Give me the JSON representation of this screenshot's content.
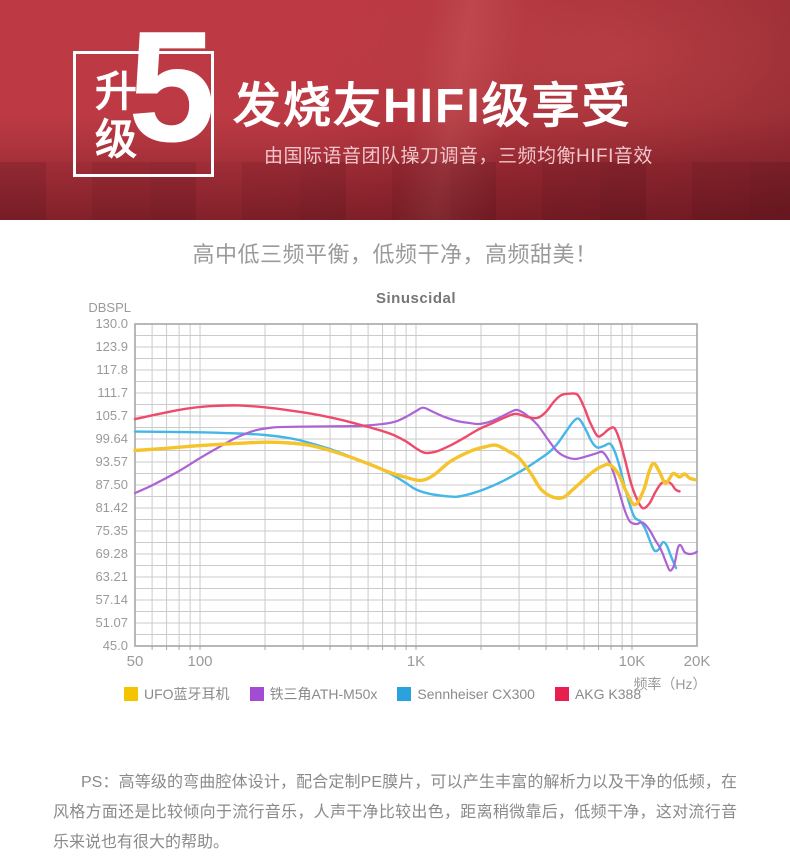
{
  "banner": {
    "badge_top": "升",
    "badge_bottom": "级",
    "badge_number": "5",
    "title": "发烧友HIFI级享受",
    "subtitle": "由国际语音团队操刀调音，三频均衡HIFI音效",
    "background_color": "#bd3a44"
  },
  "heading": "高中低三频平衡，低频干净，高频甜美！",
  "chart_data": {
    "type": "line",
    "title": "Sinuscidal",
    "ylabel": "DBSPL",
    "xlabel": "频率（Hz）",
    "x_scale": "log",
    "x_range": [
      50,
      20000
    ],
    "y_range": [
      45,
      130
    ],
    "grid": true,
    "legend_position": "bottom",
    "y_ticks": [
      {
        "label": "130.0",
        "v": 130.0
      },
      {
        "label": "123.9",
        "v": 123.93
      },
      {
        "label": "117.8",
        "v": 117.86
      },
      {
        "label": "111.7",
        "v": 111.79
      },
      {
        "label": "105.7",
        "v": 105.71
      },
      {
        "label": "99.64",
        "v": 99.64
      },
      {
        "label": "93.57",
        "v": 93.57
      },
      {
        "label": "87.50",
        "v": 87.5
      },
      {
        "label": "81.42",
        "v": 81.42
      },
      {
        "label": "75.35",
        "v": 75.35
      },
      {
        "label": "69.28",
        "v": 69.28
      },
      {
        "label": "63.21",
        "v": 63.21
      },
      {
        "label": "57.14",
        "v": 57.14
      },
      {
        "label": "51.07",
        "v": 51.07
      },
      {
        "label": "45.0",
        "v": 45.0
      }
    ],
    "x_ticks": [
      {
        "label": "50",
        "f": 50
      },
      {
        "label": "100",
        "f": 100
      },
      {
        "label": "1K",
        "f": 1000
      },
      {
        "label": "10K",
        "f": 10000
      },
      {
        "label": "20K",
        "f": 20000
      }
    ],
    "x_gridlines": [
      60,
      70,
      80,
      90,
      100,
      200,
      300,
      400,
      500,
      600,
      700,
      800,
      900,
      1000,
      2000,
      3000,
      4000,
      5000,
      6000,
      7000,
      8000,
      9000,
      10000
    ],
    "series": [
      {
        "name": "UFO蓝牙耳机",
        "color": "#f5c32c",
        "swatch": "#f5c400",
        "width": 3.4,
        "points": [
          [
            50,
            96.6
          ],
          [
            70,
            97.2
          ],
          [
            100,
            97.9
          ],
          [
            150,
            98.5
          ],
          [
            200,
            98.8
          ],
          [
            260,
            98.6
          ],
          [
            320,
            98.0
          ],
          [
            400,
            96.6
          ],
          [
            500,
            94.8
          ],
          [
            620,
            92.8
          ],
          [
            750,
            90.9
          ],
          [
            900,
            89.5
          ],
          [
            1050,
            88.7
          ],
          [
            1200,
            90.0
          ],
          [
            1450,
            93.8
          ],
          [
            1800,
            96.5
          ],
          [
            2100,
            97.6
          ],
          [
            2350,
            98.0
          ],
          [
            2700,
            96.3
          ],
          [
            3000,
            94.6
          ],
          [
            3400,
            90.6
          ],
          [
            3800,
            86.3
          ],
          [
            4300,
            84.3
          ],
          [
            4800,
            84.2
          ],
          [
            5300,
            86.2
          ],
          [
            5900,
            88.6
          ],
          [
            6600,
            91.0
          ],
          [
            7300,
            92.5
          ],
          [
            7900,
            92.8
          ],
          [
            8700,
            90.2
          ],
          [
            9400,
            85.8
          ],
          [
            10300,
            82.3
          ],
          [
            11300,
            86.0
          ],
          [
            12000,
            91.0
          ],
          [
            12600,
            93.2
          ],
          [
            13400,
            91.0
          ],
          [
            14300,
            88.0
          ],
          [
            15500,
            90.5
          ],
          [
            16600,
            89.6
          ],
          [
            17500,
            90.4
          ],
          [
            18500,
            89.3
          ],
          [
            19600,
            88.9
          ]
        ]
      },
      {
        "name": "铁三角ATH-M50x",
        "color": "#ab63d6",
        "swatch": "#a44bd3",
        "width": 2.2,
        "points": [
          [
            50,
            85.4
          ],
          [
            60,
            87.4
          ],
          [
            80,
            91.2
          ],
          [
            100,
            94.6
          ],
          [
            125,
            97.8
          ],
          [
            150,
            100.2
          ],
          [
            180,
            101.9
          ],
          [
            220,
            102.7
          ],
          [
            280,
            102.9
          ],
          [
            400,
            103.0
          ],
          [
            550,
            103.1
          ],
          [
            700,
            103.6
          ],
          [
            800,
            104.2
          ],
          [
            900,
            105.5
          ],
          [
            1000,
            107.0
          ],
          [
            1080,
            107.9
          ],
          [
            1200,
            106.8
          ],
          [
            1350,
            105.5
          ],
          [
            1550,
            104.4
          ],
          [
            1750,
            103.9
          ],
          [
            1950,
            103.6
          ],
          [
            2200,
            104.2
          ],
          [
            2500,
            105.6
          ],
          [
            2750,
            106.8
          ],
          [
            2950,
            107.3
          ],
          [
            3300,
            105.7
          ],
          [
            3650,
            103.4
          ],
          [
            4050,
            99.8
          ],
          [
            4500,
            96.4
          ],
          [
            5000,
            94.8
          ],
          [
            5500,
            94.4
          ],
          [
            6200,
            95.1
          ],
          [
            6800,
            95.8
          ],
          [
            7300,
            96.2
          ],
          [
            7800,
            94.0
          ],
          [
            8300,
            90.0
          ],
          [
            8800,
            85.0
          ],
          [
            9300,
            80.5
          ],
          [
            9800,
            77.8
          ],
          [
            10500,
            77.2
          ],
          [
            11200,
            77.6
          ],
          [
            12000,
            75.8
          ],
          [
            12800,
            73.0
          ],
          [
            13600,
            70.5
          ],
          [
            14400,
            67.0
          ],
          [
            15000,
            64.9
          ],
          [
            15700,
            66.5
          ],
          [
            16300,
            70.8
          ],
          [
            16800,
            71.6
          ],
          [
            17500,
            69.8
          ],
          [
            18300,
            69.3
          ],
          [
            19200,
            69.4
          ],
          [
            20000,
            69.9
          ]
        ]
      },
      {
        "name": "Sennheiser CX300",
        "color": "#45b6e8",
        "swatch": "#2aa2de",
        "width": 2.4,
        "points": [
          [
            50,
            101.6
          ],
          [
            100,
            101.4
          ],
          [
            150,
            101.1
          ],
          [
            200,
            100.7
          ],
          [
            250,
            100.0
          ],
          [
            300,
            99.1
          ],
          [
            400,
            97.0
          ],
          [
            500,
            94.9
          ],
          [
            600,
            93.2
          ],
          [
            700,
            91.5
          ],
          [
            800,
            89.8
          ],
          [
            900,
            88.0
          ],
          [
            1000,
            86.3
          ],
          [
            1150,
            85.2
          ],
          [
            1350,
            84.6
          ],
          [
            1550,
            84.4
          ],
          [
            1800,
            85.2
          ],
          [
            2100,
            86.5
          ],
          [
            2500,
            88.4
          ],
          [
            2900,
            90.4
          ],
          [
            3300,
            92.3
          ],
          [
            3700,
            94.2
          ],
          [
            4100,
            96.0
          ],
          [
            4500,
            98.3
          ],
          [
            5000,
            102.0
          ],
          [
            5400,
            104.5
          ],
          [
            5700,
            104.9
          ],
          [
            6100,
            102.2
          ],
          [
            6500,
            99.0
          ],
          [
            6900,
            97.4
          ],
          [
            7400,
            97.8
          ],
          [
            7900,
            98.4
          ],
          [
            8300,
            96.5
          ],
          [
            8800,
            92.0
          ],
          [
            9300,
            86.5
          ],
          [
            9800,
            82.0
          ],
          [
            10300,
            78.9
          ],
          [
            10900,
            78.0
          ],
          [
            11500,
            76.0
          ],
          [
            12100,
            72.8
          ],
          [
            12700,
            70.2
          ],
          [
            13300,
            70.5
          ],
          [
            13900,
            72.4
          ],
          [
            14500,
            71.5
          ],
          [
            15200,
            68.5
          ],
          [
            16000,
            65.6
          ]
        ]
      },
      {
        "name": "AKG K388",
        "color": "#ee4a6b",
        "swatch": "#e81e4e",
        "width": 2.4,
        "points": [
          [
            50,
            104.9
          ],
          [
            65,
            106.3
          ],
          [
            85,
            107.6
          ],
          [
            110,
            108.3
          ],
          [
            150,
            108.5
          ],
          [
            200,
            108.0
          ],
          [
            260,
            107.2
          ],
          [
            330,
            106.3
          ],
          [
            420,
            105.1
          ],
          [
            520,
            103.8
          ],
          [
            640,
            102.4
          ],
          [
            780,
            100.8
          ],
          [
            900,
            99.0
          ],
          [
            1000,
            97.2
          ],
          [
            1100,
            96.0
          ],
          [
            1250,
            96.4
          ],
          [
            1450,
            98.0
          ],
          [
            1700,
            100.2
          ],
          [
            1950,
            102.2
          ],
          [
            2250,
            103.8
          ],
          [
            2600,
            105.4
          ],
          [
            2900,
            106.3
          ],
          [
            3300,
            105.4
          ],
          [
            3650,
            105.2
          ],
          [
            4000,
            106.8
          ],
          [
            4350,
            109.5
          ],
          [
            4700,
            111.2
          ],
          [
            5100,
            111.6
          ],
          [
            5600,
            111.3
          ],
          [
            6000,
            108.0
          ],
          [
            6400,
            104.0
          ],
          [
            6900,
            100.5
          ],
          [
            7300,
            100.8
          ],
          [
            7800,
            102.2
          ],
          [
            8300,
            102.5
          ],
          [
            8800,
            99.0
          ],
          [
            9300,
            94.0
          ],
          [
            9900,
            88.0
          ],
          [
            10500,
            84.0
          ],
          [
            11200,
            81.4
          ],
          [
            12000,
            82.5
          ],
          [
            12800,
            85.5
          ],
          [
            13600,
            87.8
          ],
          [
            14400,
            88.4
          ],
          [
            15200,
            87.8
          ],
          [
            15900,
            86.3
          ],
          [
            16600,
            85.8
          ]
        ]
      }
    ]
  },
  "footnote": "PS：高等级的弯曲腔体设计，配合定制PE膜片，可以产生丰富的解析力以及干净的低频，在风格方面还是比较倾向于流行音乐，人声干净比较出色，距离稍微靠后，低频干净，这对流行音乐来说也有很大的帮助。"
}
